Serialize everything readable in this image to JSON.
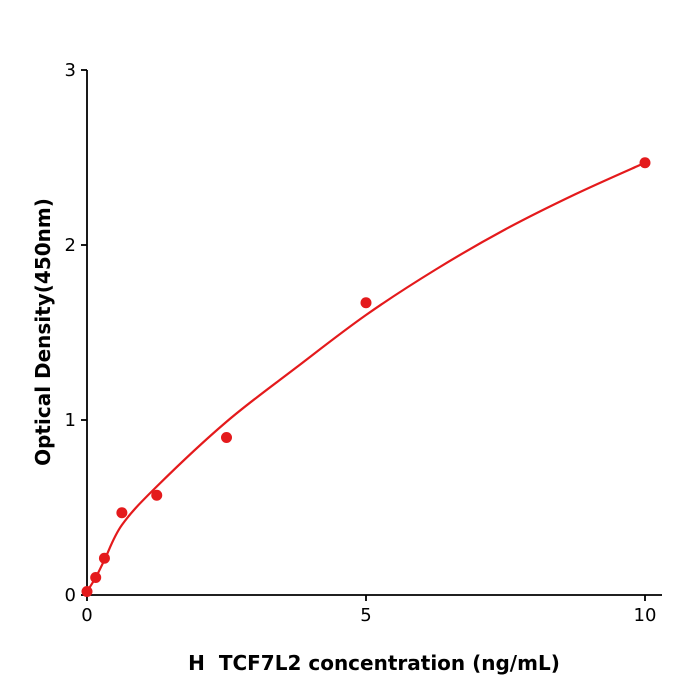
{
  "chart_data": {
    "type": "scatter",
    "title": "",
    "xlabel": "H  TCF7L2 concentration (ng/mL)",
    "ylabel": "Optical Density(450nm)",
    "xlim": [
      0,
      10.3
    ],
    "ylim": [
      0,
      3
    ],
    "x_ticks": [
      0,
      5,
      10
    ],
    "y_ticks": [
      0,
      1,
      2,
      3
    ],
    "grid": false,
    "legend": false,
    "point_color": "#e41a1c",
    "curve_color": "#e41a1c",
    "axis_color": "#000000",
    "points": {
      "x": [
        0,
        0.156,
        0.3125,
        0.625,
        1.25,
        2.5,
        5,
        10
      ],
      "y": [
        0.02,
        0.1,
        0.21,
        0.47,
        0.57,
        0.9,
        1.67,
        2.47
      ]
    },
    "fit_curve": {
      "x": [
        0,
        0.156,
        0.3125,
        0.625,
        1.25,
        2.5,
        3.75,
        5,
        6.25,
        7.5,
        8.75,
        10
      ],
      "y": [
        0.02,
        0.1,
        0.2,
        0.4,
        0.62,
        0.99,
        1.3,
        1.6,
        1.86,
        2.09,
        2.29,
        2.47
      ]
    }
  }
}
